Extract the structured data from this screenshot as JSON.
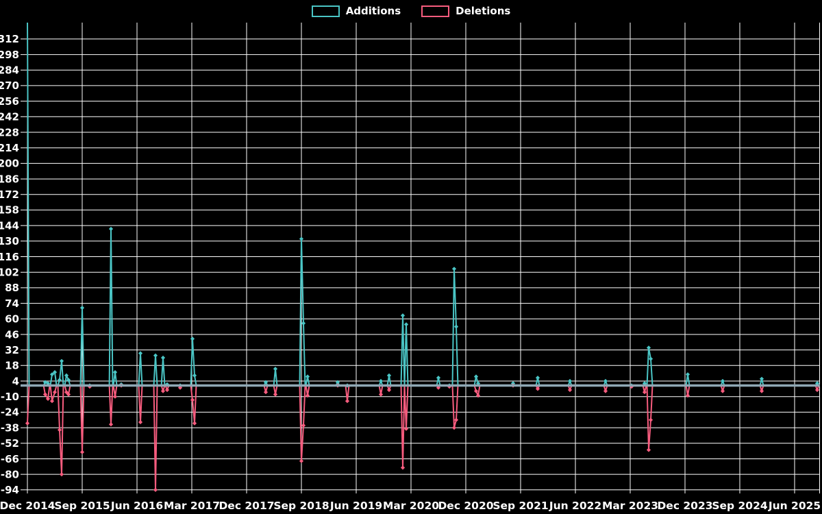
{
  "legend_items": [
    {
      "label": "Additions",
      "color": "#4AC5C5"
    },
    {
      "label": "Deletions",
      "color": "#F75C7E"
    }
  ],
  "chart_data": {
    "type": "line",
    "title": "",
    "legend": [
      {
        "label": "Additions",
        "color": "#4AC5C5"
      },
      {
        "label": "Deletions",
        "color": "#F75C7E"
      }
    ],
    "background_color": "#000000",
    "grid_color": "#FFFFFF",
    "zero_line_color": "#8FA8B5",
    "text_color": "#FFFFFF",
    "grid": true,
    "legend_position": "top-center",
    "x_axis": {
      "unit": "months_since_first_tick",
      "tick_interval_months": 9,
      "tick_labels": [
        "Dec 2014",
        "Sep 2015",
        "Jun 2016",
        "Mar 2017",
        "Dec 2017",
        "Sep 2018",
        "Jun 2019",
        "Mar 2020",
        "Dec 2020",
        "Sep 2021",
        "Jun 2022",
        "Mar 2023",
        "Dec 2023",
        "Sep 2024",
        "Jun 2025"
      ]
    },
    "y_axis": {
      "min": -94,
      "max": 326,
      "tick_step": 14,
      "ticks": [
        312,
        298,
        284,
        270,
        256,
        242,
        228,
        214,
        200,
        186,
        172,
        158,
        144,
        130,
        116,
        102,
        88,
        74,
        60,
        46,
        32,
        18,
        4,
        -10,
        -24,
        -38,
        -52,
        -66,
        -80,
        -94
      ]
    },
    "clipped_note": "first Additions spike exceeds axis top (clipped at ~326)",
    "series": [
      {
        "name": "Additions",
        "color": "#4AC5C5",
        "points": [
          [
            0,
            330
          ],
          [
            2.93,
            3
          ],
          [
            3.38,
            2
          ],
          [
            4.05,
            10
          ],
          [
            4.5,
            12
          ],
          [
            5.29,
            5
          ],
          [
            5.63,
            22
          ],
          [
            6.41,
            9
          ],
          [
            6.75,
            5
          ],
          [
            9,
            70
          ],
          [
            10.24,
            0
          ],
          [
            13.73,
            141
          ],
          [
            14.4,
            12
          ],
          [
            15.41,
            1
          ],
          [
            18.56,
            29
          ],
          [
            21.04,
            27
          ],
          [
            22.28,
            25
          ],
          [
            22.95,
            1
          ],
          [
            25.09,
            0
          ],
          [
            27.11,
            42
          ],
          [
            27.45,
            9
          ],
          [
            39.15,
            3
          ],
          [
            40.73,
            15
          ],
          [
            45,
            132
          ],
          [
            45.34,
            56
          ],
          [
            46.01,
            8
          ],
          [
            50.96,
            3
          ],
          [
            52.54,
            0
          ],
          [
            58.05,
            4
          ],
          [
            59.4,
            9
          ],
          [
            61.65,
            63
          ],
          [
            62.21,
            55
          ],
          [
            67.5,
            7
          ],
          [
            69.3,
            0
          ],
          [
            70.09,
            105
          ],
          [
            70.43,
            53
          ],
          [
            73.69,
            8
          ],
          [
            74.03,
            2
          ],
          [
            79.76,
            2
          ],
          [
            83.81,
            7
          ],
          [
            89.1,
            4
          ],
          [
            94.95,
            4
          ],
          [
            99.23,
            0
          ],
          [
            101.36,
            2
          ],
          [
            102.04,
            34
          ],
          [
            102.38,
            24
          ],
          [
            108.45,
            10
          ],
          [
            114.19,
            4
          ],
          [
            120.6,
            6
          ],
          [
            129.71,
            2
          ]
        ]
      },
      {
        "name": "Deletions",
        "color": "#F75C7E",
        "points": [
          [
            0,
            -34
          ],
          [
            2.93,
            -8
          ],
          [
            3.38,
            -12
          ],
          [
            4.05,
            -14
          ],
          [
            4.5,
            -6
          ],
          [
            5.29,
            -40
          ],
          [
            5.63,
            -80
          ],
          [
            6.41,
            -6
          ],
          [
            6.75,
            -8
          ],
          [
            9,
            -60
          ],
          [
            10.24,
            -1
          ],
          [
            13.73,
            -35
          ],
          [
            14.4,
            -10
          ],
          [
            15.41,
            0
          ],
          [
            18.56,
            -33
          ],
          [
            21.04,
            -94
          ],
          [
            22.28,
            -5
          ],
          [
            22.95,
            -4
          ],
          [
            25.09,
            -2
          ],
          [
            27.11,
            -13
          ],
          [
            27.45,
            -34
          ],
          [
            39.15,
            -6
          ],
          [
            40.73,
            -8
          ],
          [
            45,
            -68
          ],
          [
            45.34,
            -36
          ],
          [
            46.01,
            -9
          ],
          [
            50.96,
            0
          ],
          [
            52.54,
            -14
          ],
          [
            58.05,
            -8
          ],
          [
            59.4,
            -4
          ],
          [
            61.65,
            -74
          ],
          [
            62.21,
            -39
          ],
          [
            67.5,
            -2
          ],
          [
            69.3,
            -1
          ],
          [
            70.09,
            -38
          ],
          [
            70.43,
            -31
          ],
          [
            73.69,
            -5
          ],
          [
            74.03,
            -9
          ],
          [
            79.76,
            0
          ],
          [
            83.81,
            -3
          ],
          [
            89.1,
            -4
          ],
          [
            94.95,
            -5
          ],
          [
            99.23,
            -1
          ],
          [
            101.36,
            -6
          ],
          [
            102.04,
            -58
          ],
          [
            102.38,
            -31
          ],
          [
            108.45,
            -9
          ],
          [
            114.19,
            -5
          ],
          [
            120.6,
            -5
          ],
          [
            129.71,
            -4
          ]
        ]
      }
    ]
  }
}
